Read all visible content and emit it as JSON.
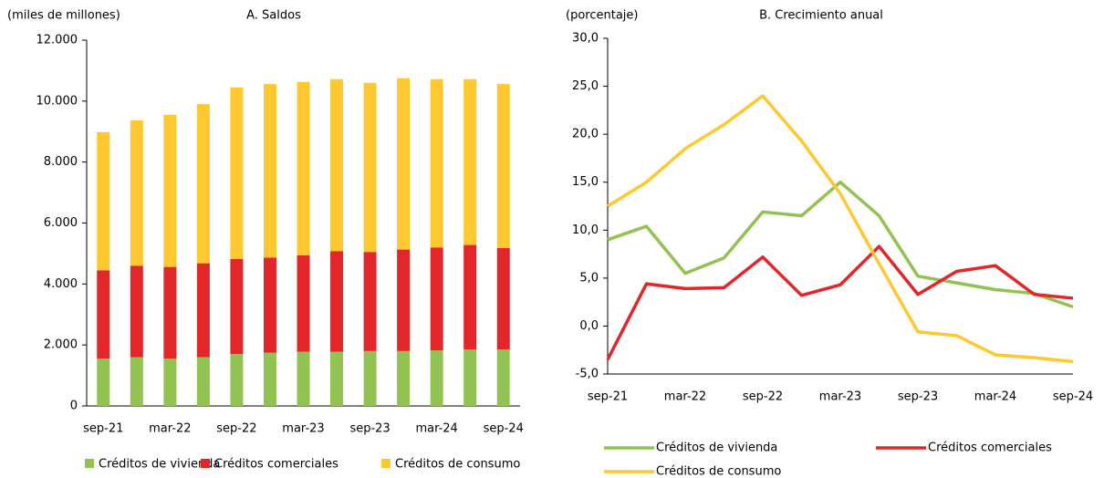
{
  "chart_data": [
    {
      "type": "bar",
      "stacked": true,
      "title": "A. Saldos",
      "y_label": "(miles de millones)",
      "categories": [
        "sep-21",
        null,
        "mar-22",
        null,
        "sep-22",
        null,
        "mar-23",
        null,
        "sep-23",
        null,
        "mar-24",
        null,
        "sep-24"
      ],
      "series": [
        {
          "name": "Créditos de vivienda",
          "color": "#92c352",
          "values": [
            1550,
            1600,
            1550,
            1600,
            1700,
            1750,
            1780,
            1780,
            1800,
            1800,
            1820,
            1850,
            1850
          ]
        },
        {
          "name": "Créditos comerciales",
          "color": "#e3262a",
          "values": [
            2900,
            3000,
            3010,
            3080,
            3120,
            3120,
            3160,
            3300,
            3250,
            3330,
            3380,
            3430,
            3330
          ]
        },
        {
          "name": "Créditos de consumo",
          "color": "#ffc830",
          "values": [
            4530,
            4770,
            4990,
            5220,
            5630,
            5690,
            5690,
            5640,
            5550,
            5620,
            5520,
            5440,
            5380
          ]
        }
      ],
      "ylim": [
        0,
        12000
      ],
      "yticks": [
        0,
        {
          "value": 2000,
          "label": "2.000"
        },
        {
          "value": 4000,
          "label": "4.000"
        },
        {
          "value": 6000,
          "label": "6.000"
        },
        {
          "value": 8000,
          "label": "8.000"
        },
        {
          "value": 10000,
          "label": "10.000"
        },
        {
          "value": 12000,
          "label": "12.000"
        }
      ]
    },
    {
      "type": "line",
      "title": "B. Crecimiento anual",
      "y_label": "(porcentaje)",
      "categories": [
        "sep-21",
        null,
        "mar-22",
        null,
        "sep-22",
        null,
        "mar-23",
        null,
        "sep-23",
        null,
        "mar-24",
        null,
        "sep-24"
      ],
      "series": [
        {
          "name": "Créditos de vivienda",
          "color": "#92c352",
          "values": [
            9.0,
            10.4,
            5.5,
            7.1,
            11.9,
            11.5,
            15.0,
            11.5,
            5.2,
            4.5,
            3.8,
            3.4,
            2.0
          ]
        },
        {
          "name": "Créditos comerciales",
          "color": "#e3262a",
          "values": [
            -3.5,
            4.4,
            3.9,
            4.0,
            7.2,
            3.2,
            4.3,
            8.3,
            3.3,
            5.7,
            6.3,
            3.3,
            2.9
          ]
        },
        {
          "name": "Créditos de consumo",
          "color": "#ffc830",
          "values": [
            12.5,
            15.0,
            18.5,
            21.0,
            24.0,
            19.3,
            13.8,
            6.5,
            -0.6,
            -1.0,
            -3.0,
            -3.3,
            -3.7
          ]
        }
      ],
      "ylim": [
        -5,
        30
      ],
      "yticks": [
        {
          "value": -5,
          "label": "-5,0"
        },
        {
          "value": 0,
          "label": "0,0"
        },
        {
          "value": 5,
          "label": "5,0"
        },
        {
          "value": 10,
          "label": "10,0"
        },
        {
          "value": 15,
          "label": "15,0"
        },
        {
          "value": 20,
          "label": "20,0"
        },
        {
          "value": 25,
          "label": "25,0"
        },
        {
          "value": 30,
          "label": "30,0"
        }
      ]
    }
  ]
}
